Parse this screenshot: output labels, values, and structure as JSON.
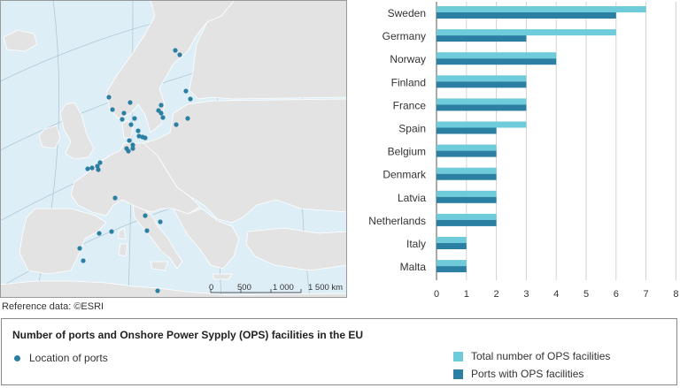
{
  "map": {
    "scalebar": {
      "ticks": [
        "0",
        "500",
        "1 000",
        "1 500 km"
      ]
    },
    "port_dots": [
      [
        198,
        57
      ],
      [
        203,
        62
      ],
      [
        210,
        103
      ],
      [
        123,
        110
      ],
      [
        127,
        124
      ],
      [
        147,
        116
      ],
      [
        140,
        128
      ],
      [
        138,
        135
      ],
      [
        152,
        134
      ],
      [
        182,
        119
      ],
      [
        179,
        125
      ],
      [
        184,
        133
      ],
      [
        182,
        128
      ],
      [
        215,
        112
      ],
      [
        212,
        134
      ],
      [
        199,
        141
      ],
      [
        148,
        141
      ],
      [
        156,
        148
      ],
      [
        157,
        154
      ],
      [
        161,
        155
      ],
      [
        164,
        156
      ],
      [
        146,
        159
      ],
      [
        150,
        164
      ],
      [
        143,
        168
      ],
      [
        150,
        168
      ],
      [
        145,
        171
      ],
      [
        113,
        184
      ],
      [
        110,
        188
      ],
      [
        104,
        190
      ],
      [
        99,
        191
      ],
      [
        111,
        192
      ],
      [
        130,
        224
      ],
      [
        164,
        244
      ],
      [
        181,
        251
      ],
      [
        166,
        261
      ],
      [
        126,
        262
      ],
      [
        112,
        264
      ],
      [
        90,
        281
      ],
      [
        94,
        295
      ],
      [
        178,
        329
      ]
    ]
  },
  "chart_data": {
    "type": "bar",
    "orientation": "horizontal",
    "categories": [
      "Sweden",
      "Germany",
      "Norway",
      "Finland",
      "France",
      "Spain",
      "Belgium",
      "Denmark",
      "Latvia",
      "Netherlands",
      "Italy",
      "Malta"
    ],
    "series": [
      {
        "name": "Total number of OPS facilities",
        "color": "#6ecbd9",
        "values": [
          7,
          6,
          4,
          3,
          3,
          3,
          2,
          2,
          2,
          2,
          1,
          1
        ]
      },
      {
        "name": "Ports with OPS facilities",
        "color": "#2b7fa3",
        "values": [
          6,
          3,
          4,
          3,
          3,
          2,
          2,
          2,
          2,
          2,
          1,
          1
        ]
      }
    ],
    "xlim": [
      0,
      8
    ],
    "xticks": [
      "0",
      "1",
      "2",
      "3",
      "4",
      "5",
      "6",
      "7",
      "8"
    ],
    "grid": true
  },
  "reference": "Reference data: ©ESRI",
  "legend": {
    "title": "Number of ports and Onshore Power Sypply (OPS) facilities in the EU",
    "location_label": "Location of ports",
    "total_label": "Total number of OPS facilities",
    "ports_label": "Ports with OPS facilities"
  }
}
